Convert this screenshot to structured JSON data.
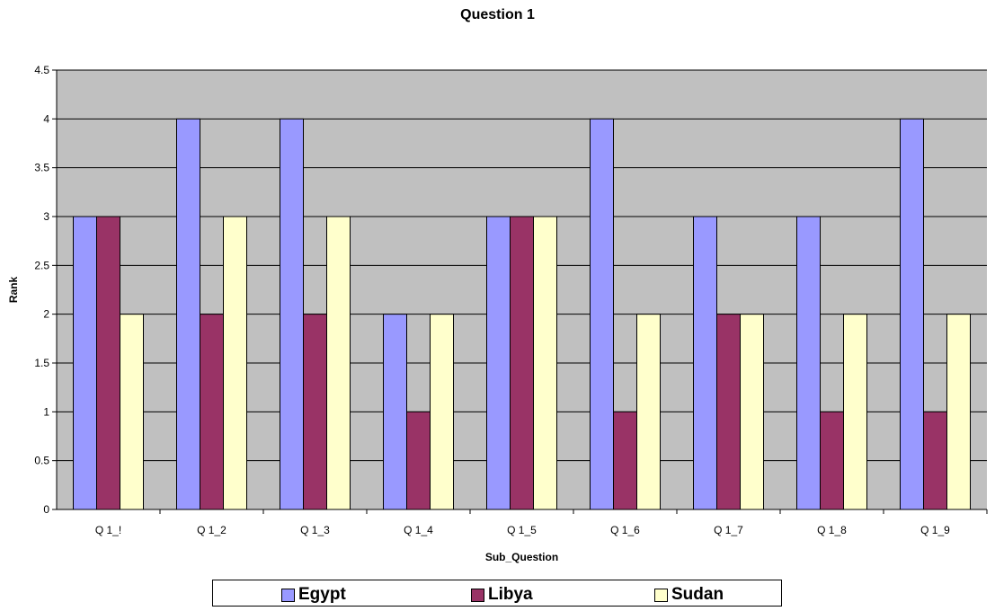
{
  "chart_data": {
    "type": "bar",
    "title": "Question 1",
    "xlabel": "Sub_Question",
    "ylabel": "Rank",
    "ylim": [
      0,
      4.5
    ],
    "yticks": [
      "0",
      "0.5",
      "1",
      "1.5",
      "2",
      "2.5",
      "3",
      "3.5",
      "4",
      "4.5"
    ],
    "grid": true,
    "legend_placement": "bottom",
    "categories": [
      "Q 1_!",
      "Q 1_2",
      "Q 1_3",
      "Q 1_4",
      "Q 1_5",
      "Q 1_6",
      "Q 1_7",
      "Q 1_8",
      "Q 1_9"
    ],
    "series": [
      {
        "name": "Egypt",
        "color": "#9999FF",
        "values": [
          3,
          4,
          4,
          2,
          3,
          4,
          3,
          3,
          4
        ]
      },
      {
        "name": "Libya",
        "color": "#993366",
        "values": [
          3,
          2,
          2,
          1,
          3,
          1,
          2,
          1,
          1
        ]
      },
      {
        "name": "Sudan",
        "color": "#FFFFCC",
        "values": [
          2,
          3,
          3,
          2,
          3,
          2,
          2,
          2,
          2
        ]
      }
    ],
    "plot_background": "#C0C0C0"
  }
}
